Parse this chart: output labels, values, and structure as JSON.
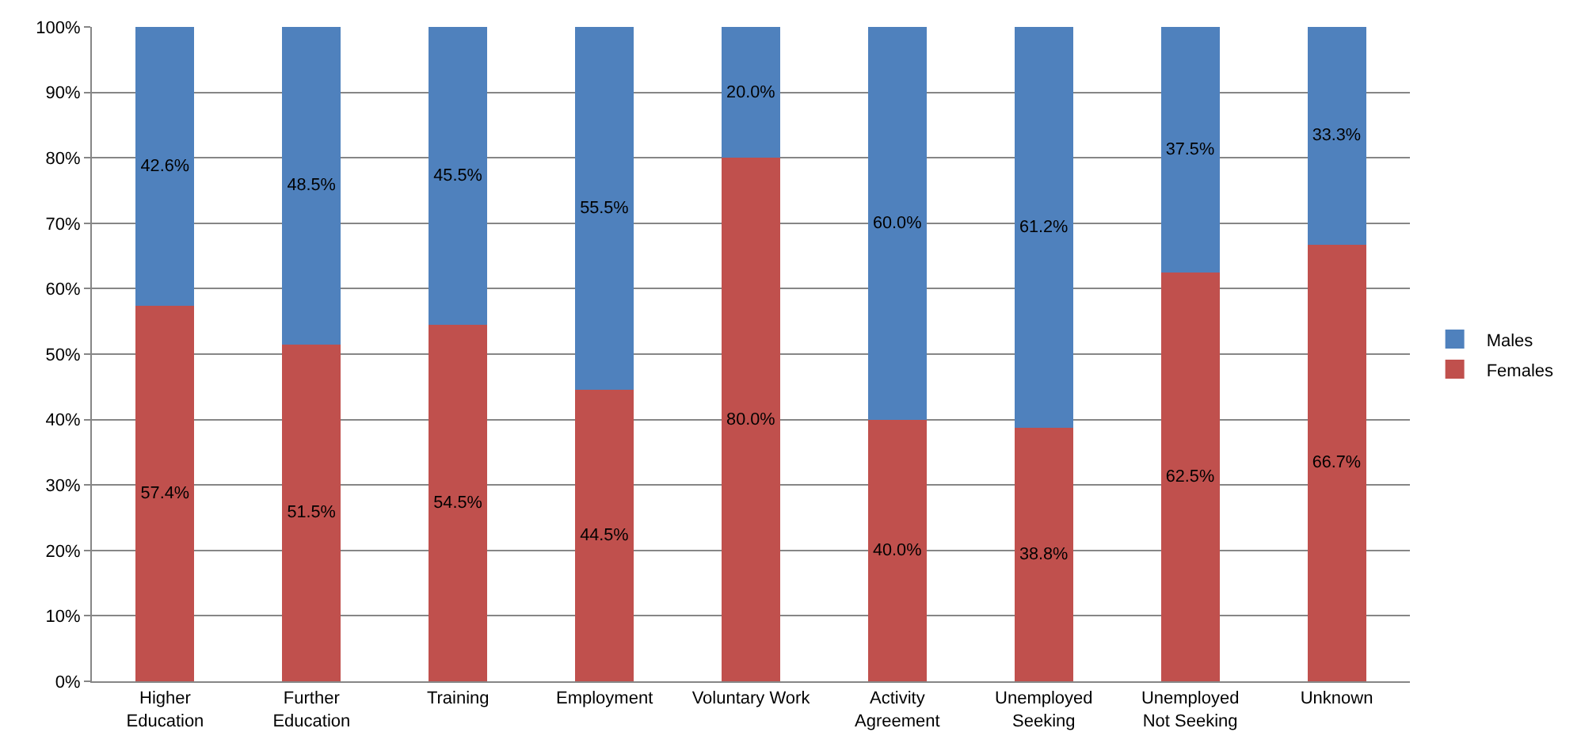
{
  "chart_data": {
    "type": "bar",
    "stacked": true,
    "categories": [
      "Higher\nEducation",
      "Further\nEducation",
      "Training",
      "Employment",
      "Voluntary Work",
      "Activity\nAgreement",
      "Unemployed\nSeeking",
      "Unemployed\nNot Seeking",
      "Unknown"
    ],
    "series": [
      {
        "name": "Females",
        "color": "#c0504d",
        "values": [
          57.4,
          51.5,
          54.5,
          44.5,
          80.0,
          40.0,
          38.8,
          62.5,
          66.7
        ],
        "value_labels": [
          "57.4%",
          "51.5%",
          "54.5%",
          "44.5%",
          "80.0%",
          "40.0%",
          "38.8%",
          "62.5%",
          "66.7%"
        ]
      },
      {
        "name": "Males",
        "color": "#4f81bd",
        "values": [
          42.6,
          48.5,
          45.5,
          55.5,
          20.0,
          60.0,
          61.2,
          37.5,
          33.3
        ],
        "value_labels": [
          "42.6%",
          "48.5%",
          "45.5%",
          "55.5%",
          "20.0%",
          "60.0%",
          "61.2%",
          "37.5%",
          "33.3%"
        ]
      }
    ],
    "ylim": [
      0,
      100
    ],
    "yticks": [
      {
        "value": 0,
        "label": "0%"
      },
      {
        "value": 10,
        "label": "10%"
      },
      {
        "value": 20,
        "label": "20%"
      },
      {
        "value": 30,
        "label": "30%"
      },
      {
        "value": 40,
        "label": "40%"
      },
      {
        "value": 50,
        "label": "50%"
      },
      {
        "value": 60,
        "label": "60%"
      },
      {
        "value": 70,
        "label": "70%"
      },
      {
        "value": 80,
        "label": "80%"
      },
      {
        "value": 90,
        "label": "90%"
      },
      {
        "value": 100,
        "label": "100%"
      }
    ],
    "grid": "y",
    "legend": "right"
  }
}
